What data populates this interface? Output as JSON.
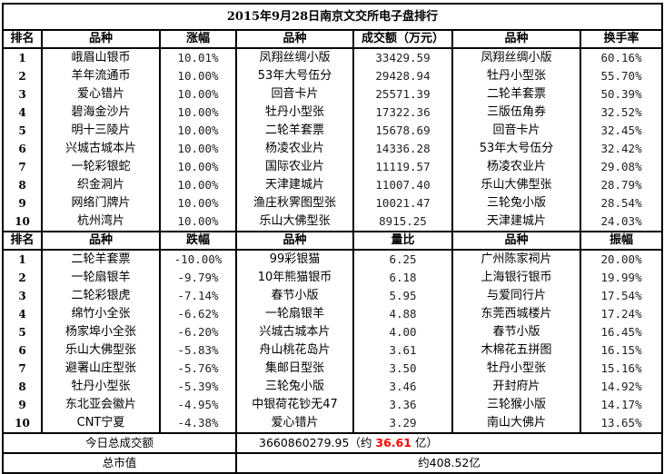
{
  "title": "2015年9月28日南京文交所电子盘排行",
  "gainers_header": {
    "rank": "排名",
    "name": "品种",
    "change": "涨幅",
    "name2": "品种",
    "amount": "成交额（万元）",
    "name3": "品种",
    "turnover": "换手率"
  },
  "gainers": [
    {
      "rank": "1",
      "name": "峨眉山银币",
      "change": "10.01%",
      "name2": "凤翔丝绸小版",
      "amount": "33429.59",
      "name3": "凤翔丝绸小版",
      "turnover": "60.16%"
    },
    {
      "rank": "2",
      "name": "羊年流通币",
      "change": "10.00%",
      "name2": "53年大号伍分",
      "amount": "29428.94",
      "name3": "牡丹小型张",
      "turnover": "55.70%"
    },
    {
      "rank": "3",
      "name": "爱心错片",
      "change": "10.00%",
      "name2": "回音卡片",
      "amount": "25571.39",
      "name3": "二轮羊套票",
      "turnover": "50.39%"
    },
    {
      "rank": "4",
      "name": "碧海金沙片",
      "change": "10.00%",
      "name2": "牡丹小型张",
      "amount": "17322.36",
      "name3": "三版伍角券",
      "turnover": "32.52%"
    },
    {
      "rank": "5",
      "name": "明十三陵片",
      "change": "10.00%",
      "name2": "二轮羊套票",
      "amount": "15678.69",
      "name3": "回音卡片",
      "turnover": "32.45%"
    },
    {
      "rank": "6",
      "name": "兴城古城本片",
      "change": "10.00%",
      "name2": "杨凌农业片",
      "amount": "14336.28",
      "name3": "53年大号伍分",
      "turnover": "32.42%"
    },
    {
      "rank": "7",
      "name": "一轮彩银蛇",
      "change": "10.00%",
      "name2": "国际农业片",
      "amount": "11119.57",
      "name3": "杨凌农业片",
      "turnover": "29.08%"
    },
    {
      "rank": "8",
      "name": "织金洞片",
      "change": "10.00%",
      "name2": "天津建城片",
      "amount": "11007.40",
      "name3": "乐山大佛型张",
      "turnover": "28.79%"
    },
    {
      "rank": "9",
      "name": "网络门牌片",
      "change": "10.00%",
      "name2": "渔庄秋霁图型张",
      "amount": "10021.47",
      "name3": "三轮兔小版",
      "turnover": "28.54%"
    },
    {
      "rank": "10",
      "name": "杭州湾片",
      "change": "10.00%",
      "name2": "乐山大佛型张",
      "amount": "8915.25",
      "name3": "天津建城片",
      "turnover": "24.03%"
    }
  ],
  "losers_header": {
    "rank": "排名",
    "name": "品种",
    "change": "跌幅",
    "name2": "品种",
    "ratio": "量比",
    "name3": "品种",
    "amplitude": "振幅"
  },
  "losers": [
    {
      "rank": "1",
      "name": "二轮羊套票",
      "change": "-10.00%",
      "name2": "99彩银猫",
      "ratio": "6.25",
      "name3": "广州陈家祠片",
      "amplitude": "20.00%"
    },
    {
      "rank": "2",
      "name": "一轮扇银羊",
      "change": "-9.79%",
      "name2": "10年熊猫银币",
      "ratio": "6.18",
      "name3": "上海银行银币",
      "amplitude": "19.99%"
    },
    {
      "rank": "3",
      "name": "二轮彩银虎",
      "change": "-7.14%",
      "name2": "春节小版",
      "ratio": "5.95",
      "name3": "与爱同行片",
      "amplitude": "17.54%"
    },
    {
      "rank": "4",
      "name": "绵竹小全张",
      "change": "-6.62%",
      "name2": "一轮扇银羊",
      "ratio": "4.88",
      "name3": "东莞西城楼片",
      "amplitude": "17.24%"
    },
    {
      "rank": "5",
      "name": "杨家埠小全张",
      "change": "-6.20%",
      "name2": "兴城古城本片",
      "ratio": "4.00",
      "name3": "春节小版",
      "amplitude": "16.45%"
    },
    {
      "rank": "6",
      "name": "乐山大佛型张",
      "change": "-5.83%",
      "name2": "舟山桃花岛片",
      "ratio": "3.61",
      "name3": "木棉花五拼图",
      "amplitude": "16.15%"
    },
    {
      "rank": "7",
      "name": "避署山庄型张",
      "change": "-5.76%",
      "name2": "集邮日型张",
      "ratio": "3.50",
      "name3": "牡丹小型张",
      "amplitude": "15.16%"
    },
    {
      "rank": "8",
      "name": "牡丹小型张",
      "change": "-5.39%",
      "name2": "三轮兔小版",
      "ratio": "3.46",
      "name3": "开封府片",
      "amplitude": "14.92%"
    },
    {
      "rank": "9",
      "name": "东北亚会徽片",
      "change": "-4.95%",
      "name2": "中银荷花钞无47",
      "ratio": "3.36",
      "name3": "三轮猴小版",
      "amplitude": "14.17%"
    },
    {
      "rank": "10",
      "name": "CNT宁夏",
      "change": "-4.38%",
      "name2": "爱心错片",
      "ratio": "3.29",
      "name3": "南山大佛片",
      "amplitude": "13.65%"
    }
  ],
  "footer": {
    "total_label": "今日总成交额",
    "total_prefix": "3660860279.95（约",
    "total_highlight": "36.61",
    "total_suffix": "亿）",
    "market_label": "总市值",
    "market_value": "约408.52亿"
  },
  "colors": {
    "highlight": "#ff0000"
  }
}
